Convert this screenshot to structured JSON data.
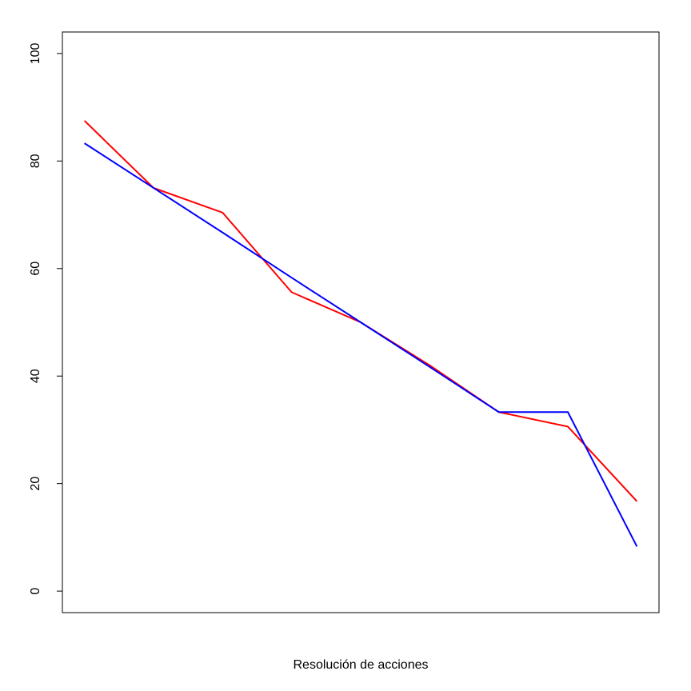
{
  "chart_data": {
    "type": "line",
    "x_label": "Resolución de acciones",
    "x": [
      1,
      2,
      3,
      4,
      5,
      6,
      7,
      8,
      9
    ],
    "xlim": [
      0.68,
      9.32
    ],
    "ylim": [
      -4,
      104
    ],
    "yticks": [
      0,
      20,
      40,
      60,
      80,
      100
    ],
    "series": [
      {
        "color": "#ff0000",
        "values": [
          87.5,
          75,
          70.4,
          55.6,
          50,
          42,
          33.3,
          30.6,
          16.7
        ]
      },
      {
        "color": "#0000ff",
        "values": [
          83.3,
          75,
          66.7,
          58.3,
          50,
          41.7,
          33.3,
          33.3,
          8.3
        ]
      }
    ]
  }
}
